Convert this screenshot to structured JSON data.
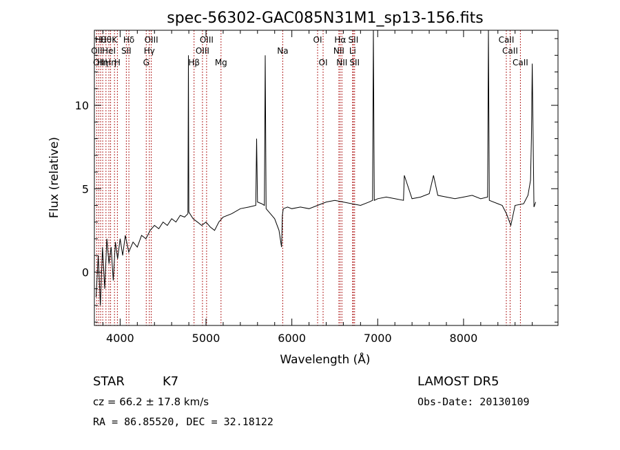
{
  "chart_data": {
    "type": "line",
    "title": "spec-56302-GAC085N31M1_sp13-156.fits",
    "xlabel": "Wavelength (Å)",
    "ylabel": "Flux (relative)",
    "xlim": [
      3700,
      9100
    ],
    "ylim": [
      -3.2,
      14.5
    ],
    "x_ticks": [
      4000,
      5000,
      6000,
      7000,
      8000
    ],
    "y_ticks": [
      0,
      5,
      10
    ],
    "grid": false,
    "series_color": "#000000",
    "line_color": "#b22222",
    "series": [
      {
        "x": [
          3720,
          3745,
          3770,
          3795,
          3820,
          3845,
          3870,
          3895,
          3920,
          3945,
          3970,
          4000,
          4030,
          4060,
          4100,
          4150,
          4200,
          4250,
          4300,
          4350,
          4400,
          4450,
          4500,
          4550,
          4600,
          4650,
          4700,
          4750,
          4790,
          4795,
          4800,
          4850,
          4900,
          4950,
          5000,
          5050,
          5100,
          5150,
          5200,
          5300,
          5400,
          5500,
          5580,
          5590,
          5600,
          5650,
          5680,
          5690,
          5700,
          5750,
          5800,
          5850,
          5880,
          5890,
          5900,
          5950,
          6000,
          6100,
          6200,
          6300,
          6400,
          6500,
          6600,
          6700,
          6800,
          6900,
          6940,
          6950,
          6960,
          7000,
          7100,
          7200,
          7300,
          7310,
          7400,
          7500,
          7600,
          7650,
          7700,
          7800,
          7900,
          8000,
          8100,
          8200,
          8280,
          8290,
          8300,
          8400,
          8450,
          8500,
          8550,
          8600,
          8700,
          8750,
          8780,
          8790,
          8800,
          8820,
          8840
        ],
        "y": [
          -1.5,
          1.0,
          -2.0,
          1.5,
          -1.0,
          2.0,
          0.5,
          1.5,
          -0.5,
          1.8,
          0.8,
          2.0,
          1.0,
          2.2,
          1.2,
          1.8,
          1.5,
          2.2,
          2.0,
          2.5,
          2.8,
          2.6,
          3.0,
          2.8,
          3.2,
          3.0,
          3.4,
          3.3,
          3.5,
          13.0,
          3.6,
          3.2,
          3.0,
          2.8,
          3.0,
          2.7,
          2.5,
          3.0,
          3.3,
          3.5,
          3.8,
          3.9,
          4.0,
          8.0,
          4.2,
          4.1,
          4.0,
          13.0,
          3.8,
          3.5,
          3.2,
          2.5,
          1.5,
          3.4,
          3.8,
          3.9,
          3.8,
          3.9,
          3.8,
          4.0,
          4.2,
          4.3,
          4.2,
          4.1,
          4.0,
          4.2,
          4.3,
          14.5,
          4.3,
          4.4,
          4.5,
          4.4,
          4.3,
          5.8,
          4.4,
          4.5,
          4.7,
          5.8,
          4.6,
          4.5,
          4.4,
          4.5,
          4.6,
          4.4,
          4.5,
          14.5,
          4.3,
          4.1,
          4.0,
          3.5,
          2.8,
          4.0,
          4.1,
          4.6,
          5.5,
          8.0,
          12.5,
          3.9,
          4.2
        ]
      }
    ],
    "lines": [
      {
        "wl": 3727,
        "label": "OII",
        "row": 2
      },
      {
        "wl": 3750,
        "label": "OII",
        "row": 3
      },
      {
        "wl": 3772,
        "label": "Hθ",
        "row": 1
      },
      {
        "wl": 3797,
        "label": "Hη",
        "row": 3
      },
      {
        "wl": 3835,
        "label": "Hθ",
        "row": 1
      },
      {
        "wl": 3869,
        "label": "HeI",
        "row": 2
      },
      {
        "wl": 3889,
        "label": "Hη",
        "row": 3
      },
      {
        "wl": 3934,
        "label": "K",
        "row": 1
      },
      {
        "wl": 3968,
        "label": "H",
        "row": 3
      },
      {
        "wl": 4072,
        "label": "SII",
        "row": 2
      },
      {
        "wl": 4102,
        "label": "Hδ",
        "row": 1
      },
      {
        "wl": 4304,
        "label": "G",
        "row": 3
      },
      {
        "wl": 4340,
        "label": "Hγ",
        "row": 2
      },
      {
        "wl": 4363,
        "label": "OIII",
        "row": 1
      },
      {
        "wl": 4861,
        "label": "Hβ",
        "row": 3
      },
      {
        "wl": 4959,
        "label": "OIII",
        "row": 2
      },
      {
        "wl": 5007,
        "label": "OIII",
        "row": 1
      },
      {
        "wl": 5175,
        "label": "Mg",
        "row": 3
      },
      {
        "wl": 5894,
        "label": "Na",
        "row": 2
      },
      {
        "wl": 6300,
        "label": "OI",
        "row": 1
      },
      {
        "wl": 6364,
        "label": "OI",
        "row": 3
      },
      {
        "wl": 6548,
        "label": "NII",
        "row": 2
      },
      {
        "wl": 6563,
        "label": "Hα",
        "row": 1
      },
      {
        "wl": 6583,
        "label": "NII",
        "row": 3
      },
      {
        "wl": 6708,
        "label": "Li",
        "row": 2
      },
      {
        "wl": 6716,
        "label": "SII",
        "row": 1
      },
      {
        "wl": 6731,
        "label": "SII",
        "row": 3
      },
      {
        "wl": 8498,
        "label": "CaII",
        "row": 1
      },
      {
        "wl": 8542,
        "label": "CaII",
        "row": 2
      },
      {
        "wl": 8662,
        "label": "CaII",
        "row": 3
      }
    ]
  },
  "info": {
    "class": "STAR",
    "subclass": "K7",
    "survey": "LAMOST DR5",
    "cz": "cz = 66.2 ± 17.8 km/s",
    "obs_date": "Obs-Date: 20130109",
    "radec": "RA =  86.85520, DEC =  32.18122"
  }
}
